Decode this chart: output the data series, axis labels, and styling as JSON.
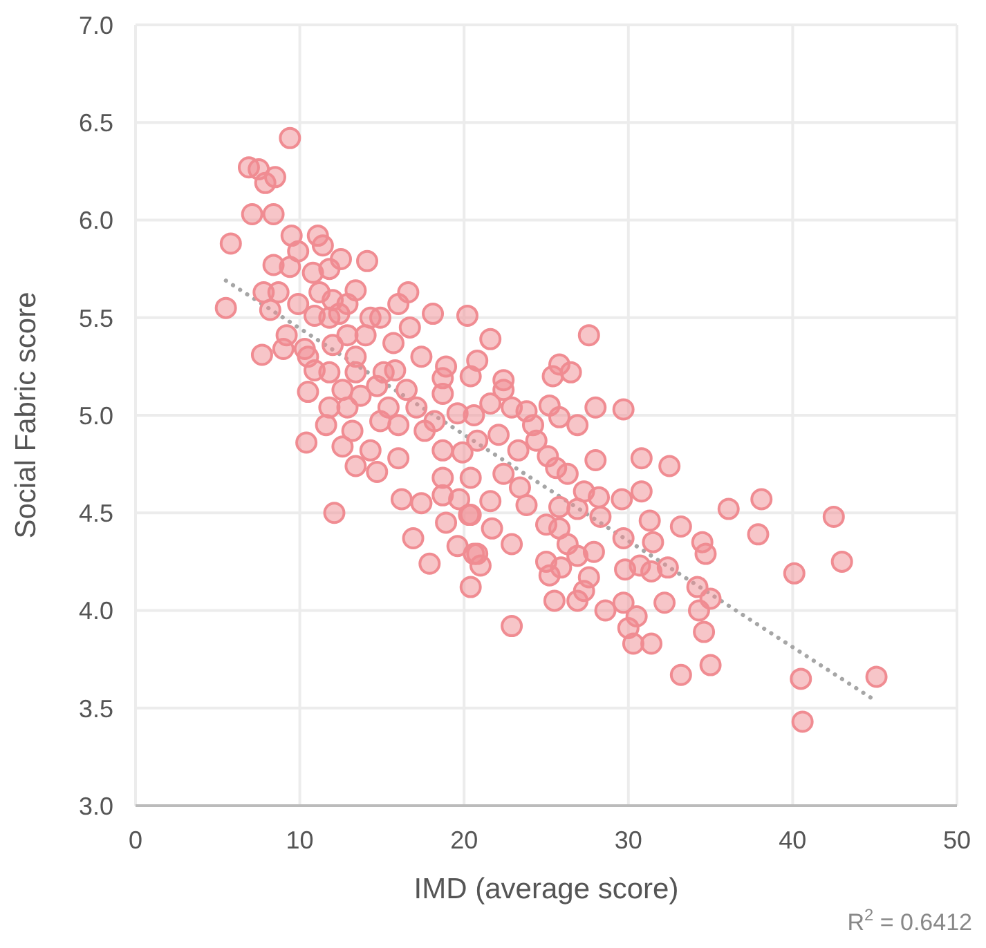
{
  "chart_data": {
    "type": "scatter",
    "xlabel": "IMD (average score)",
    "ylabel": "Social Fabric score",
    "xlim": [
      0,
      50
    ],
    "xticks": [
      0,
      10,
      20,
      30,
      40,
      50
    ],
    "ylim": [
      3,
      7
    ],
    "yticks": [
      {
        "value": 3,
        "label": "3.0"
      },
      {
        "value": 3.5,
        "label": "3.5"
      },
      {
        "value": 4,
        "label": "4.0"
      },
      {
        "value": 4.5,
        "label": "4.5"
      },
      {
        "value": 5,
        "label": "5.0"
      },
      {
        "value": 5.5,
        "label": "5.5"
      },
      {
        "value": 6,
        "label": "6.0"
      },
      {
        "value": 6.5,
        "label": "6.5"
      },
      {
        "value": 7,
        "label": "7.0"
      }
    ],
    "grid": true,
    "marker": "circle",
    "annotations": [
      "R$^{2}$ = 0.6412"
    ],
    "series": [
      {
        "color": "#f08c92",
        "x": [
          9.4,
          6.9,
          7.5,
          8.5,
          7.9,
          7.1,
          8.4,
          5.8,
          9.5,
          11.1,
          9.9,
          11.4,
          12.5,
          14.1,
          8.4,
          9.4,
          11.8,
          10.8,
          5.5,
          7.8,
          8.7,
          8.2,
          9.9,
          11.2,
          12.0,
          12.9,
          13.4,
          10.9,
          11.8,
          12.4,
          9.2,
          7.7,
          9.0,
          10.3,
          10.9,
          11.8,
          10.5,
          12.0,
          13.4,
          12.9,
          14.3,
          14.9,
          16.0,
          16.6,
          18.1,
          20.2,
          16.7,
          14.0,
          15.7,
          17.4,
          15.8,
          13.4,
          15.1,
          14.7,
          10.5,
          12.6,
          13.7,
          16.5,
          18.7,
          20.4,
          18.9,
          11.8,
          12.9,
          15.4,
          17.1,
          18.7,
          19.6,
          11.6,
          13.2,
          14.9,
          16.0,
          17.6,
          18.2,
          10.4,
          12.6,
          14.3,
          16.0,
          18.7,
          19.9,
          12.1,
          13.4,
          14.7,
          16.2,
          17.4,
          16.9,
          17.9,
          18.7,
          19.7,
          18.9,
          19.6,
          20.4,
          20.3,
          20.6,
          18.7,
          27.6,
          21.6,
          20.8,
          25.8,
          26.5,
          25.4,
          22.4,
          22.4,
          21.6,
          22.9,
          23.8,
          25.2,
          28.0,
          29.7,
          20.6,
          25.8,
          26.9,
          24.2,
          22.1,
          24.4,
          20.8,
          23.3,
          25.1,
          28.0,
          30.8,
          32.5,
          25.6,
          26.3,
          22.4,
          20.4,
          23.4,
          27.3,
          30.8,
          28.2,
          29.6,
          21.6,
          23.8,
          25.8,
          26.9,
          20.4,
          25.0,
          28.3,
          31.3,
          33.2,
          21.7,
          25.8,
          29.7,
          31.5,
          34.5,
          22.9,
          26.3,
          27.9,
          20.8,
          21.0,
          25.0,
          25.9,
          26.9,
          29.8,
          30.7,
          31.4,
          32.4,
          27.6,
          25.2,
          27.3,
          26.9,
          25.5,
          28.6,
          29.7,
          30.5,
          32.2,
          34.2,
          34.3,
          22.9,
          30.0,
          34.6,
          36.1,
          38.1,
          42.5,
          37.9,
          43.0,
          40.1,
          34.7,
          35.0,
          35.0,
          33.2,
          40.5,
          45.1,
          40.6,
          30.3,
          31.4
        ],
        "values": [
          6.42,
          6.27,
          6.26,
          6.22,
          6.19,
          6.03,
          6.03,
          5.88,
          5.92,
          5.92,
          5.84,
          5.87,
          5.8,
          5.79,
          5.77,
          5.76,
          5.75,
          5.73,
          5.55,
          5.63,
          5.63,
          5.54,
          5.57,
          5.63,
          5.59,
          5.57,
          5.64,
          5.51,
          5.5,
          5.52,
          5.41,
          5.31,
          5.34,
          5.34,
          5.23,
          5.22,
          5.3,
          5.36,
          5.3,
          5.41,
          5.5,
          5.5,
          5.57,
          5.63,
          5.52,
          5.51,
          5.45,
          5.41,
          5.37,
          5.3,
          5.23,
          5.22,
          5.22,
          5.15,
          5.12,
          5.13,
          5.1,
          5.13,
          5.19,
          5.2,
          5.25,
          5.04,
          5.04,
          5.04,
          5.04,
          5.11,
          5.01,
          4.95,
          4.92,
          4.97,
          4.95,
          4.92,
          4.97,
          4.86,
          4.84,
          4.82,
          4.78,
          4.82,
          4.81,
          4.5,
          4.74,
          4.71,
          4.57,
          4.55,
          4.37,
          4.24,
          4.59,
          4.57,
          4.45,
          4.33,
          4.12,
          4.49,
          4.29,
          4.68,
          5.41,
          5.39,
          5.28,
          5.26,
          5.22,
          5.2,
          5.18,
          5.13,
          5.06,
          5.04,
          5.02,
          5.05,
          5.04,
          5.03,
          5.0,
          4.99,
          4.95,
          4.95,
          4.9,
          4.87,
          4.87,
          4.82,
          4.79,
          4.77,
          4.78,
          4.74,
          4.73,
          4.7,
          4.7,
          4.68,
          4.63,
          4.61,
          4.61,
          4.58,
          4.57,
          4.56,
          4.54,
          4.53,
          4.52,
          4.49,
          4.44,
          4.48,
          4.46,
          4.43,
          4.42,
          4.42,
          4.37,
          4.35,
          4.35,
          4.34,
          4.34,
          4.3,
          4.29,
          4.23,
          4.25,
          4.22,
          4.28,
          4.21,
          4.23,
          4.2,
          4.22,
          4.17,
          4.18,
          4.1,
          4.05,
          4.05,
          4.0,
          4.04,
          3.97,
          4.04,
          4.12,
          4.0,
          3.92,
          3.91,
          3.89,
          4.52,
          4.57,
          4.48,
          4.39,
          4.25,
          4.19,
          4.29,
          4.06,
          3.72,
          3.67,
          3.65,
          3.66,
          3.43,
          3.83,
          3.83
        ]
      },
      {
        "type": "line",
        "color": "#a6a6a6",
        "line_style": "dotted",
        "marker": "none",
        "x": [
          5.5,
          45
        ],
        "values": [
          5.69,
          3.54
        ]
      }
    ]
  }
}
